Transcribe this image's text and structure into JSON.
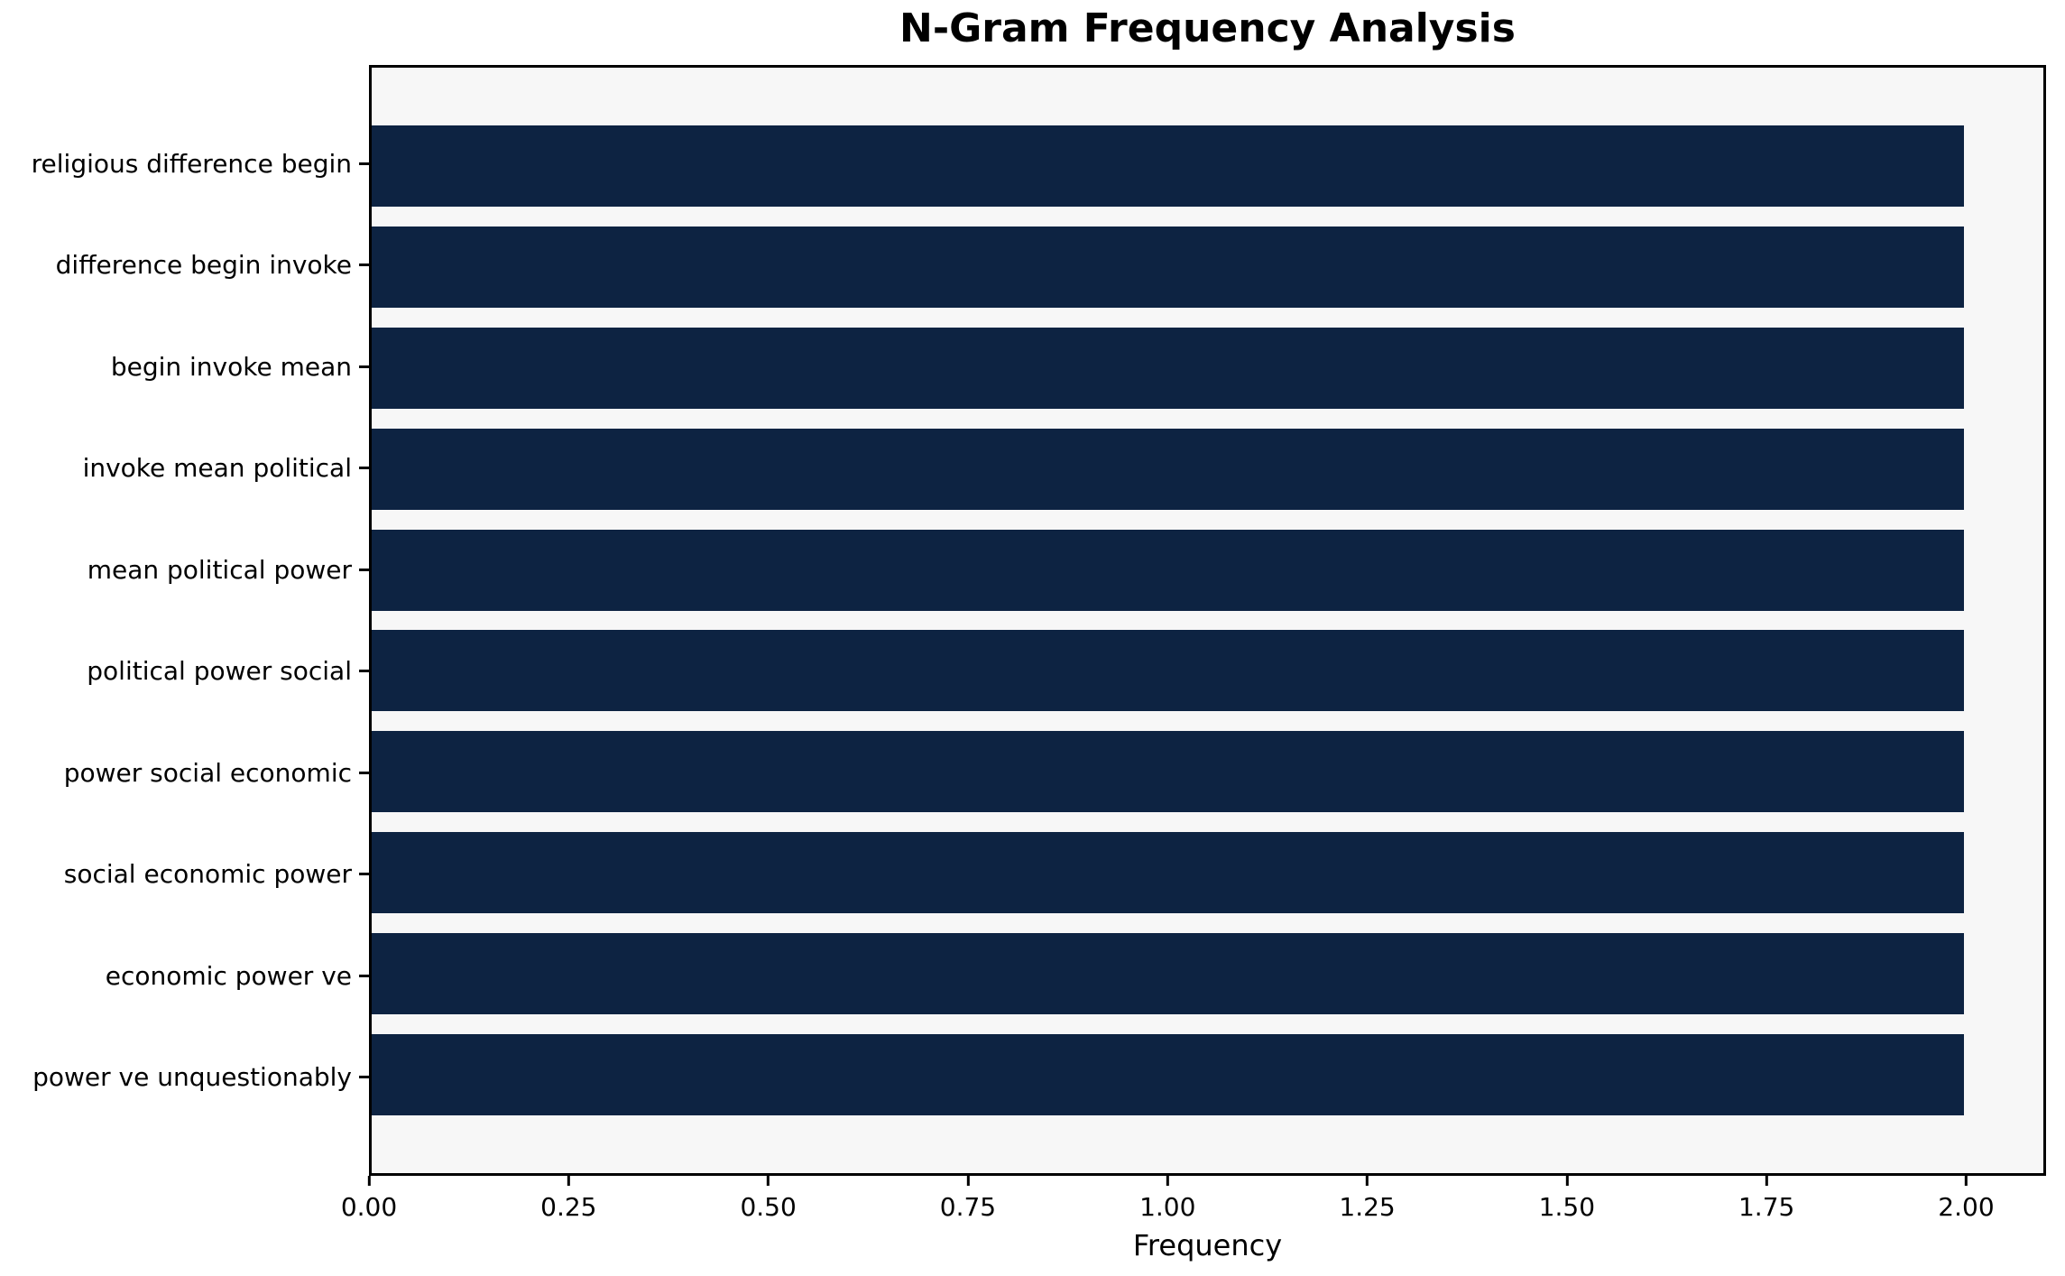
{
  "title": "N-Gram Frequency Analysis",
  "chart_data": {
    "type": "bar",
    "orientation": "horizontal",
    "title": "N-Gram Frequency Analysis",
    "xlabel": "Frequency",
    "ylabel": "",
    "categories": [
      "religious difference begin",
      "difference begin invoke",
      "begin invoke mean",
      "invoke mean political",
      "mean political power",
      "political power social",
      "power social economic",
      "social economic power",
      "economic power ve",
      "power ve unquestionably"
    ],
    "values": [
      2,
      2,
      2,
      2,
      2,
      2,
      2,
      2,
      2,
      2
    ],
    "xlim": [
      0,
      2.1
    ],
    "xticks": [
      0.0,
      0.25,
      0.5,
      0.75,
      1.0,
      1.25,
      1.5,
      1.75,
      2.0
    ],
    "xtick_labels": [
      "0.00",
      "0.25",
      "0.50",
      "0.75",
      "1.00",
      "1.25",
      "1.50",
      "1.75",
      "2.00"
    ],
    "grid": false,
    "legend": "none",
    "colors": {
      "bar": "#0d2342",
      "plot_background": "#f7f7f7",
      "figure_background": "#ffffff",
      "frame": "#000000",
      "text": "#000000"
    }
  }
}
